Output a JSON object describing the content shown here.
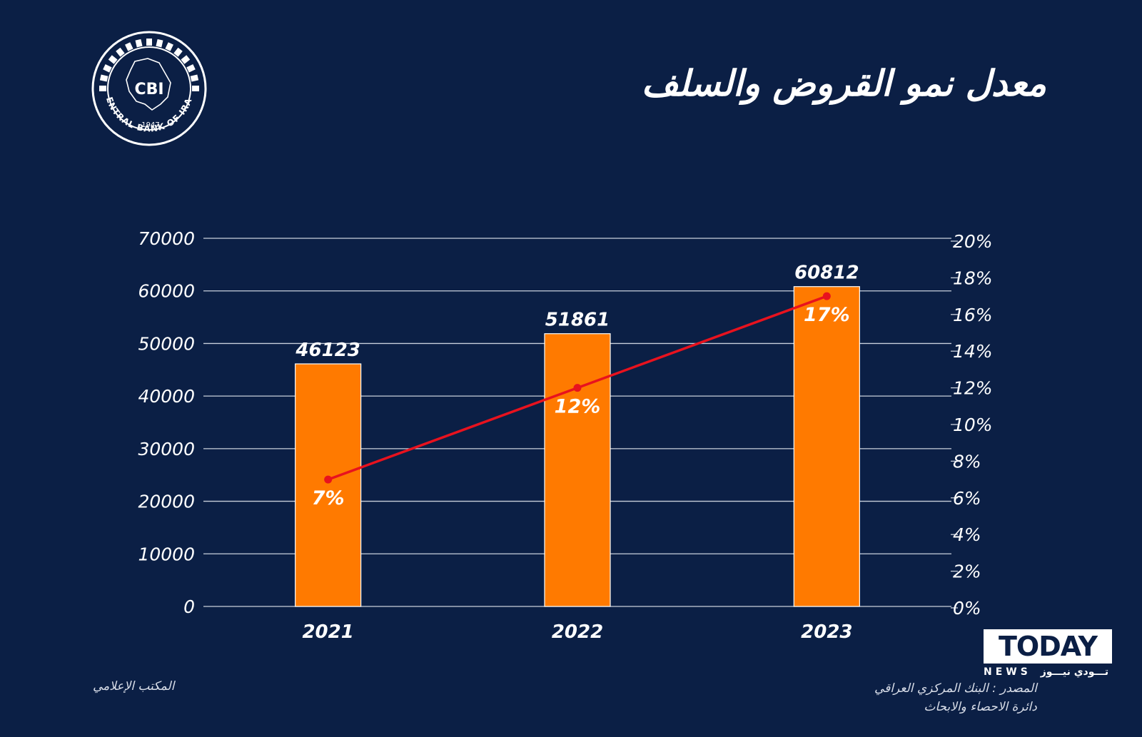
{
  "title": "معدل نمو القروض والسلف",
  "logo": {
    "text": "CBI",
    "year": "1947",
    "ring_text": "CENTRAL BANK OF IRAQ"
  },
  "chart_data": {
    "type": "bar",
    "categories": [
      "2021",
      "2022",
      "2023"
    ],
    "series": [
      {
        "type": "bar",
        "values": [
          46123,
          51861,
          60812
        ],
        "value_labels": [
          "46123",
          "51861",
          "60812"
        ],
        "color": "#ff7a00",
        "axis": "left"
      },
      {
        "type": "line",
        "values": [
          7,
          12,
          17
        ],
        "value_labels": [
          "7%",
          "12%",
          "17%"
        ],
        "color": "#e8121e",
        "axis": "right"
      }
    ],
    "ylim": [
      0,
      70000
    ],
    "y_ticks": [
      "0",
      "10000",
      "20000",
      "30000",
      "40000",
      "50000",
      "60000",
      "70000"
    ],
    "y2lim": [
      0,
      20
    ],
    "y2_ticks": [
      "0%",
      "2%",
      "4%",
      "6%",
      "8%",
      "10%",
      "12%",
      "14%",
      "16%",
      "18%",
      "20%"
    ],
    "grid": true
  },
  "footer": {
    "left": "المكتب الإعلامي",
    "source_line1": "المصدر : البنك المركزي العراقي",
    "source_line2": "دائرة الاحصاء والابحاث"
  },
  "brand": {
    "name": "TODAY",
    "sub": "NEWS",
    "arabic": "تـــودي نيـــوز"
  }
}
